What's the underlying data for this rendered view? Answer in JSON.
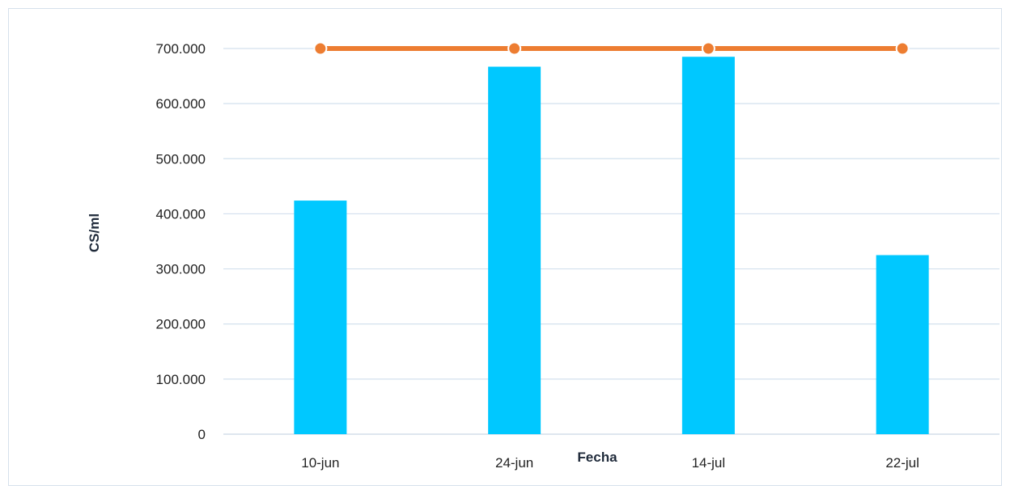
{
  "chart_data": {
    "type": "bar",
    "categories": [
      "10-jun",
      "24-jun",
      "14-jul",
      "22-jul"
    ],
    "series": [
      {
        "type": "bar",
        "values": [
          424000,
          667000,
          685000,
          325000
        ],
        "color": "#00c8ff"
      },
      {
        "type": "line",
        "values": [
          700000,
          700000,
          700000,
          700000
        ],
        "color": "#ed7d31"
      }
    ],
    "yticks": [
      "0",
      "100.000",
      "200.000",
      "300.000",
      "400.000",
      "500.000",
      "600.000",
      "700.000"
    ],
    "ylim": [
      0,
      700000
    ],
    "xlabel": "Fecha",
    "ylabel": "CS/ml",
    "grid": true,
    "colors": {
      "grid": "#d3e0ee",
      "axis": "#c9d6e4",
      "marker_edge": "#ffffff"
    }
  }
}
